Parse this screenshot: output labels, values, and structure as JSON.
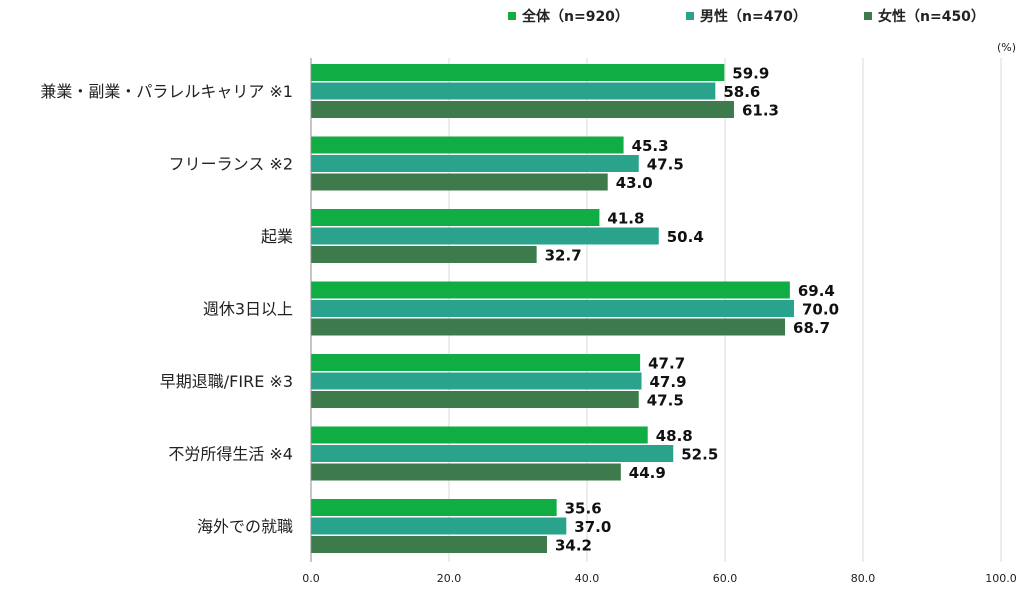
{
  "chart_data": {
    "type": "bar",
    "orientation": "horizontal",
    "unit": "(%)",
    "categories": [
      "兼業・副業・パラレルキャリア ※1",
      "フリーランス ※2",
      "起業",
      "週休3日以上",
      "早期退職/FIRE ※3",
      "不労所得生活 ※4",
      "海外での就職"
    ],
    "series": [
      {
        "name": "全体（n=920）",
        "color": "#0fad44",
        "values": [
          59.9,
          45.3,
          41.8,
          69.4,
          47.7,
          48.8,
          35.6
        ]
      },
      {
        "name": "男性（n=470）",
        "color": "#2aa38c",
        "values": [
          58.6,
          47.5,
          50.4,
          70.0,
          47.9,
          52.5,
          37.0
        ]
      },
      {
        "name": "女性（n=450）",
        "color": "#3d7a4c",
        "values": [
          61.3,
          43.0,
          32.7,
          68.7,
          47.5,
          44.9,
          34.2
        ]
      }
    ],
    "xlim": [
      0,
      100
    ],
    "ticks": [
      "0.0",
      "20.0",
      "40.0",
      "60.0",
      "80.0",
      "100.0"
    ],
    "tick_values": [
      0,
      20,
      40,
      60,
      80,
      100
    ],
    "grid": true,
    "legend": "top-right",
    "value_format": "one-decimal"
  }
}
